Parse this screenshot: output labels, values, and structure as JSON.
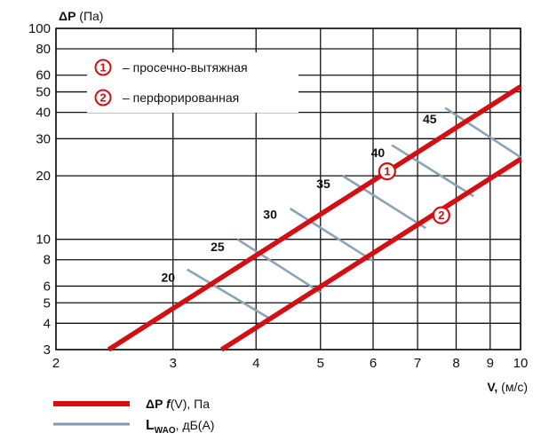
{
  "chart_data": {
    "type": "line",
    "y_axis_label_main": "ΔP",
    "y_axis_label_unit": " (Па)",
    "x_axis_label_main": "V,",
    "x_axis_label_unit": " (м/с)",
    "x_scale": "log",
    "y_scale": "log",
    "xlim": [
      2,
      10
    ],
    "ylim": [
      3,
      100
    ],
    "grid": true,
    "x_ticks": [
      2,
      3,
      4,
      5,
      6,
      7,
      8,
      9,
      10
    ],
    "y_ticks": [
      3,
      4,
      5,
      6,
      8,
      10,
      20,
      30,
      40,
      50,
      60,
      80,
      100
    ],
    "series": [
      {
        "marker_label": "1",
        "description": "просечно-вытяжная",
        "color": "#d40f14",
        "points": [
          [
            2.4,
            3
          ],
          [
            10,
            53
          ]
        ]
      },
      {
        "marker_label": "2",
        "description": "перфорированная",
        "color": "#d40f14",
        "points": [
          [
            3.55,
            3
          ],
          [
            10,
            24
          ]
        ]
      }
    ],
    "series_markers": [
      {
        "text": "1",
        "x": 6.3,
        "y": 21
      },
      {
        "text": "2",
        "x": 7.6,
        "y": 13
      }
    ],
    "noise_lines": [
      {
        "label": "20",
        "label_at": [
          2.95,
          6.3
        ],
        "points": [
          [
            3.15,
            7.2
          ],
          [
            4.2,
            4.2
          ]
        ]
      },
      {
        "label": "25",
        "label_at": [
          3.5,
          8.8
        ],
        "points": [
          [
            3.75,
            10
          ],
          [
            5.0,
            5.6
          ]
        ]
      },
      {
        "label": "30",
        "label_at": [
          4.2,
          12.5
        ],
        "points": [
          [
            4.5,
            14
          ],
          [
            6.0,
            7.9
          ]
        ]
      },
      {
        "label": "35",
        "label_at": [
          5.05,
          17.5
        ],
        "points": [
          [
            5.4,
            20
          ],
          [
            7.2,
            11.3
          ]
        ]
      },
      {
        "label": "40",
        "label_at": [
          6.1,
          24.5
        ],
        "points": [
          [
            6.4,
            28
          ],
          [
            8.5,
            16
          ]
        ]
      },
      {
        "label": "45",
        "label_at": [
          7.3,
          35.5
        ],
        "points": [
          [
            7.7,
            42
          ],
          [
            10,
            24.5
          ]
        ]
      }
    ],
    "legend_box": [
      {
        "marker": "1",
        "text": "– просечно-вытяжная"
      },
      {
        "marker": "2",
        "text": "– перфорированная"
      }
    ],
    "bottom_legend": [
      {
        "prefix": "ΔP ",
        "func": "f",
        "suffix": "(V), Па",
        "color": "#d40f14"
      },
      {
        "main": "L",
        "sub": "WAO",
        "suffix": ", дБ(А)",
        "color": "#7f9cae"
      }
    ],
    "noise_color": "#8aa4b4",
    "grid_color": "#111111"
  }
}
